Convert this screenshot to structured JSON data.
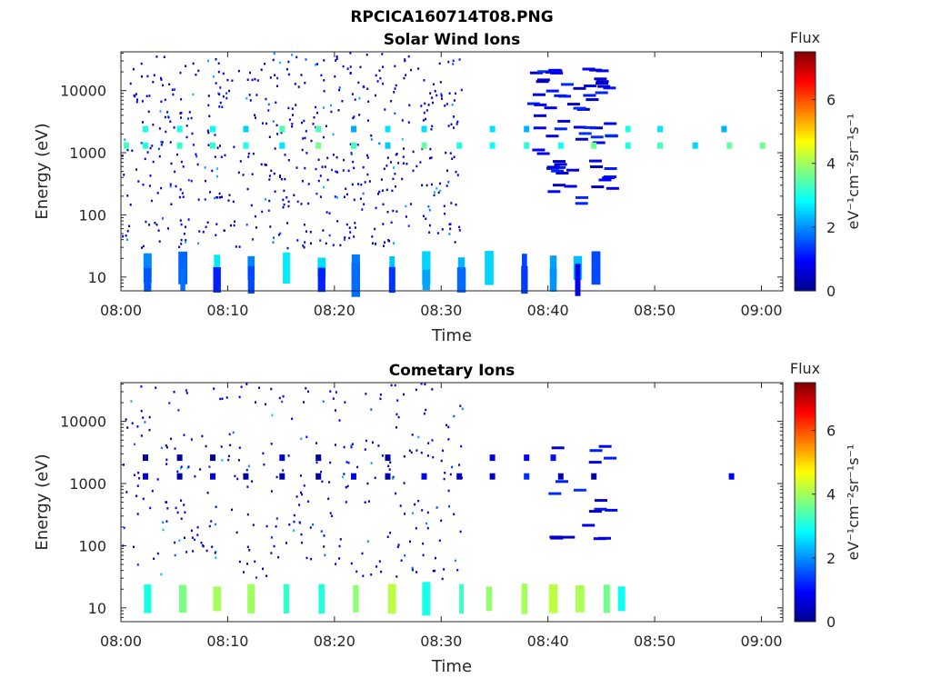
{
  "figure": {
    "title": "RPCICA160714T08.PNG"
  },
  "chart_data": [
    {
      "type": "heatmap",
      "title": "Solar Wind Ions",
      "xlabel": "Time",
      "ylabel": "Energy (eV)",
      "x_ticks": [
        "08:00",
        "08:10",
        "08:20",
        "08:30",
        "08:40",
        "08:50",
        "09:00"
      ],
      "y_ticks": [
        "10",
        "100",
        "1000",
        "10000"
      ],
      "y_scale": "log",
      "xlim_minutes": [
        0,
        62
      ],
      "ylim": [
        6,
        42000
      ],
      "colorbar": {
        "label": "Flux",
        "unit": "eV⁻¹cm⁻²sr⁻¹s⁻¹",
        "ticks": [
          "0",
          "2",
          "4",
          "6"
        ],
        "range": [
          0,
          7.5
        ],
        "colormap": "jet"
      },
      "bands": [
        {
          "energy": 1300,
          "level": 3.1,
          "minutes": [
            0.5,
            2.3,
            5.5,
            8.6,
            11.7,
            15.1,
            18.5,
            21.8,
            25.0,
            28.4,
            31.7,
            34.8,
            38.0,
            41.2,
            44.3,
            47.5,
            50.5,
            53.8,
            57.0,
            60.1
          ]
        },
        {
          "energy": 2400,
          "level": 2.8,
          "minutes": [
            2.3,
            5.5,
            8.6,
            11.7,
            15.1,
            18.5,
            21.8,
            25.0,
            28.4,
            34.8,
            38.0,
            47.5,
            50.5,
            56.5
          ]
        },
        {
          "energy": 14,
          "level": 2.0,
          "minutes": [
            2.5,
            5.8,
            9.0,
            12.2,
            15.5,
            18.8,
            22.0,
            25.4,
            28.6,
            31.9,
            34.5,
            37.8,
            40.5,
            42.8,
            44.5
          ]
        },
        {
          "energy": 9,
          "level": 1.5,
          "minutes": [
            2.5,
            5.8,
            9.0,
            12.2,
            18.8,
            22.0,
            25.4,
            28.6,
            31.9,
            37.8,
            40.5,
            42.8
          ]
        }
      ],
      "sparse_counts_per_minute": 4.5,
      "sparse_extent_minutes": [
        0,
        32
      ],
      "dense_block_minutes": [
        38,
        45.5
      ]
    },
    {
      "type": "heatmap",
      "title": "Cometary Ions",
      "xlabel": "Time",
      "ylabel": "Energy (eV)",
      "x_ticks": [
        "08:00",
        "08:10",
        "08:20",
        "08:30",
        "08:40",
        "08:50",
        "09:00"
      ],
      "y_ticks": [
        "10",
        "100",
        "1000",
        "10000"
      ],
      "y_scale": "log",
      "xlim_minutes": [
        0,
        62
      ],
      "ylim": [
        6,
        42000
      ],
      "colorbar": {
        "label": "Flux",
        "unit": "eV⁻¹cm⁻²sr⁻¹s⁻¹",
        "ticks": [
          "0",
          "2",
          "4",
          "6"
        ],
        "range": [
          0,
          7.5
        ],
        "colormap": "jet"
      },
      "bands": [
        {
          "energy": 14,
          "level": 3.6,
          "minutes": [
            2.5,
            5.8,
            9.0,
            12.2,
            15.5,
            18.8,
            22.0,
            25.4,
            28.6,
            31.9,
            34.5,
            37.8,
            40.5,
            43.0,
            45.5,
            46.9
          ]
        },
        {
          "energy": 1300,
          "level": 0.6,
          "minutes": [
            2.3,
            5.5,
            8.6,
            11.7,
            15.1,
            18.5,
            21.8,
            25.0,
            28.4,
            31.7,
            34.8,
            38.0,
            41.2,
            44.3,
            57.2
          ]
        },
        {
          "energy": 2600,
          "level": 0.4,
          "minutes": [
            2.3,
            5.5,
            8.6,
            15.1,
            18.5,
            25.0,
            34.8,
            38.0,
            40.5
          ]
        }
      ],
      "sparse_counts_per_minute": 2.5,
      "sparse_extent_minutes": [
        0,
        32
      ],
      "dense_block_minutes": [
        40,
        45.5
      ]
    }
  ]
}
